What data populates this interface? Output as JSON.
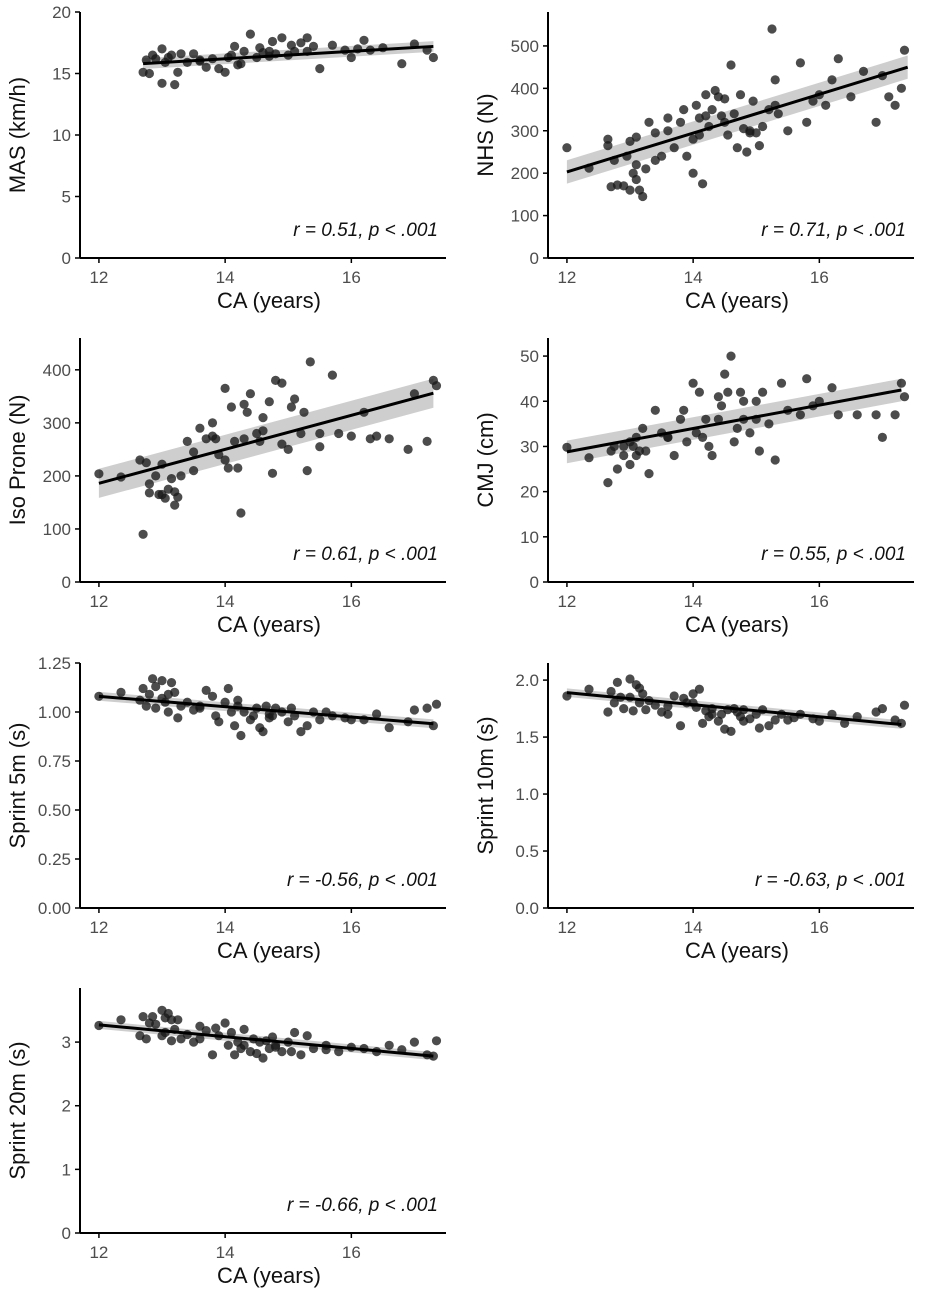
{
  "chart_data": [
    {
      "type": "scatter",
      "xlabel": "CA (years)",
      "ylabel": "MAS (km/h)",
      "xlim": [
        11.7,
        17.5
      ],
      "xticks": [
        12,
        14,
        16
      ],
      "ylim": [
        0,
        20
      ],
      "yticks": [
        0,
        5,
        10,
        15,
        20
      ],
      "annotation": "r = 0.51, p < .001",
      "fit": {
        "x0": 12.7,
        "y0": 15.8,
        "x1": 17.3,
        "y1": 17.2,
        "ci": 0.35
      },
      "x": [
        12.7,
        12.75,
        12.8,
        12.9,
        13.0,
        13.0,
        13.05,
        13.1,
        13.15,
        13.2,
        13.25,
        13.3,
        13.4,
        13.5,
        13.6,
        13.7,
        13.8,
        13.9,
        14.0,
        14.05,
        14.1,
        14.15,
        14.2,
        14.3,
        14.4,
        14.5,
        14.55,
        14.6,
        14.7,
        14.75,
        14.8,
        14.9,
        15.0,
        15.05,
        15.1,
        15.2,
        15.3,
        15.3,
        15.5,
        15.7,
        15.9,
        16.0,
        16.2,
        16.3,
        16.5,
        16.8,
        17.0,
        17.2,
        17.3,
        12.85,
        13.6,
        14.7,
        15.4,
        16.1,
        14.25
      ],
      "y": [
        15.1,
        16.1,
        15.0,
        16.2,
        14.2,
        17.0,
        15.9,
        16.3,
        16.5,
        14.1,
        15.1,
        16.6,
        15.9,
        16.6,
        16.0,
        15.5,
        16.2,
        15.4,
        15.1,
        16.3,
        16.5,
        17.2,
        15.7,
        16.8,
        18.2,
        16.3,
        17.1,
        16.7,
        16.4,
        17.6,
        16.6,
        17.9,
        16.5,
        17.3,
        16.8,
        17.5,
        17.9,
        16.8,
        15.4,
        17.3,
        16.9,
        16.3,
        17.7,
        16.9,
        17.1,
        15.8,
        17.4,
        16.9,
        16.3,
        16.5,
        16.1,
        16.8,
        17.2,
        17.0,
        15.8
      ]
    },
    {
      "type": "scatter",
      "xlabel": "CA (years)",
      "ylabel": "NHS (N)",
      "xlim": [
        11.7,
        17.5
      ],
      "xticks": [
        12,
        14,
        16
      ],
      "ylim": [
        0,
        580
      ],
      "yticks": [
        0,
        100,
        200,
        300,
        400,
        500
      ],
      "annotation": "r = 0.71, p < .001",
      "fit": {
        "x0": 12.0,
        "y0": 203,
        "x1": 17.4,
        "y1": 450,
        "ci": 22
      },
      "x": [
        12.0,
        12.35,
        12.65,
        12.7,
        12.75,
        12.8,
        12.9,
        12.95,
        13.0,
        13.0,
        13.05,
        13.1,
        13.1,
        13.15,
        13.2,
        13.25,
        13.3,
        13.4,
        13.5,
        13.6,
        13.7,
        13.8,
        13.85,
        13.9,
        14.0,
        14.05,
        14.1,
        14.1,
        14.15,
        14.2,
        14.25,
        14.3,
        14.35,
        14.4,
        14.45,
        14.5,
        14.55,
        14.6,
        14.65,
        14.7,
        14.75,
        14.8,
        14.85,
        14.9,
        14.95,
        15.0,
        15.05,
        15.1,
        15.2,
        15.25,
        15.3,
        15.35,
        15.5,
        15.7,
        15.8,
        15.9,
        16.1,
        16.2,
        16.3,
        16.5,
        16.7,
        16.9,
        17.0,
        17.1,
        17.2,
        17.3,
        17.35,
        12.65,
        13.4,
        14.2,
        14.5,
        14.9,
        15.3,
        16.0,
        13.6,
        14.0,
        13.1
      ],
      "y": [
        260,
        212,
        280,
        168,
        230,
        172,
        170,
        240,
        160,
        275,
        200,
        185,
        220,
        160,
        145,
        210,
        320,
        230,
        240,
        300,
        260,
        320,
        350,
        240,
        200,
        360,
        330,
        290,
        175,
        385,
        310,
        350,
        395,
        380,
        335,
        320,
        290,
        455,
        340,
        260,
        385,
        305,
        250,
        300,
        370,
        295,
        265,
        310,
        350,
        540,
        420,
        340,
        300,
        460,
        320,
        370,
        360,
        420,
        470,
        380,
        440,
        320,
        430,
        380,
        360,
        400,
        490,
        265,
        295,
        335,
        375,
        295,
        360,
        385,
        330,
        280,
        285
      ]
    },
    {
      "type": "scatter",
      "xlabel": "CA (years)",
      "ylabel": "Iso Prone (N)",
      "xlim": [
        11.7,
        17.5
      ],
      "xticks": [
        12,
        14,
        16
      ],
      "ylim": [
        0,
        460
      ],
      "yticks": [
        0,
        100,
        200,
        300,
        400
      ],
      "annotation": "r = 0.61, p < .001",
      "fit": {
        "x0": 12.0,
        "y0": 186,
        "x1": 17.3,
        "y1": 356,
        "ci": 22
      },
      "x": [
        12.0,
        12.35,
        12.65,
        12.7,
        12.75,
        12.8,
        12.9,
        12.95,
        13.0,
        13.05,
        13.1,
        13.15,
        13.2,
        13.25,
        13.3,
        13.4,
        13.5,
        13.6,
        13.7,
        13.8,
        13.85,
        13.9,
        14.0,
        14.0,
        14.05,
        14.1,
        14.15,
        14.2,
        14.25,
        14.3,
        14.35,
        14.4,
        14.5,
        14.55,
        14.6,
        14.7,
        14.75,
        14.8,
        14.9,
        15.0,
        15.05,
        15.1,
        15.2,
        15.25,
        15.3,
        15.35,
        15.5,
        15.7,
        15.8,
        16.0,
        16.2,
        16.3,
        16.6,
        16.9,
        17.0,
        17.2,
        17.3,
        17.35,
        13.0,
        13.2,
        13.8,
        14.3,
        14.9,
        15.5,
        16.4,
        13.5,
        14.6,
        12.8
      ],
      "y": [
        204,
        198,
        230,
        90,
        225,
        168,
        200,
        165,
        222,
        158,
        175,
        195,
        145,
        160,
        200,
        265,
        210,
        290,
        270,
        300,
        270,
        240,
        230,
        365,
        215,
        330,
        265,
        215,
        130,
        335,
        320,
        355,
        280,
        265,
        310,
        340,
        205,
        380,
        375,
        250,
        330,
        345,
        280,
        320,
        210,
        415,
        280,
        390,
        280,
        275,
        320,
        270,
        270,
        250,
        355,
        265,
        380,
        370,
        165,
        170,
        275,
        270,
        260,
        255,
        275,
        245,
        285,
        185
      ]
    },
    {
      "type": "scatter",
      "xlabel": "CA (years)",
      "ylabel": "CMJ (cm)",
      "xlim": [
        11.7,
        17.5
      ],
      "xticks": [
        12,
        14,
        16
      ],
      "ylim": [
        0,
        54
      ],
      "yticks": [
        0,
        10,
        20,
        30,
        40,
        50
      ],
      "annotation": "r = 0.55, p < .001",
      "fit": {
        "x0": 12.0,
        "y0": 28.8,
        "x1": 17.3,
        "y1": 42.5,
        "ci": 2.0
      },
      "x": [
        12.0,
        12.35,
        12.65,
        12.7,
        12.75,
        12.8,
        12.9,
        13.0,
        13.0,
        13.05,
        13.1,
        13.15,
        13.2,
        13.25,
        13.3,
        13.4,
        13.5,
        13.6,
        13.7,
        13.8,
        13.85,
        13.9,
        14.0,
        14.05,
        14.1,
        14.15,
        14.2,
        14.25,
        14.3,
        14.4,
        14.45,
        14.5,
        14.55,
        14.6,
        14.65,
        14.7,
        14.75,
        14.8,
        14.9,
        15.0,
        15.05,
        15.1,
        15.2,
        15.3,
        15.4,
        15.5,
        15.7,
        15.8,
        16.0,
        16.2,
        16.3,
        16.6,
        16.9,
        17.0,
        17.2,
        17.3,
        17.35,
        13.1,
        13.6,
        14.4,
        15.0,
        15.9,
        14.8,
        12.9
      ],
      "y": [
        29.8,
        27.5,
        22,
        29,
        30,
        25,
        28,
        26,
        31,
        30,
        32,
        29,
        34,
        29,
        24,
        38,
        33,
        32,
        28,
        36,
        38,
        31,
        44,
        33,
        42,
        32,
        36,
        30,
        28,
        36,
        39,
        46,
        42,
        50,
        31,
        34,
        42,
        40,
        33,
        36,
        29,
        42,
        35,
        27,
        44,
        38,
        37,
        45,
        40,
        43,
        37,
        37,
        37,
        32,
        37,
        44,
        41,
        28,
        32,
        41,
        40,
        39,
        36,
        30
      ]
    },
    {
      "type": "scatter",
      "xlabel": "CA (years)",
      "ylabel": "Sprint 5m (s)",
      "xlim": [
        11.7,
        17.5
      ],
      "xticks": [
        12,
        14,
        16
      ],
      "ylim": [
        0,
        1.25
      ],
      "yticks": [
        0.0,
        0.25,
        0.5,
        0.75,
        1.0,
        1.25
      ],
      "ytick_labels": [
        "0.00",
        "0.25",
        "0.50",
        "0.75",
        "1.00",
        "1.25"
      ],
      "annotation": "r = -0.56, p < .001",
      "fit": {
        "x0": 12.0,
        "y0": 1.08,
        "x1": 17.3,
        "y1": 0.94,
        "ci": 0.018
      },
      "x": [
        12.0,
        12.35,
        12.65,
        12.7,
        12.75,
        12.8,
        12.85,
        12.9,
        13.0,
        13.0,
        13.05,
        13.1,
        13.15,
        13.2,
        13.25,
        13.3,
        13.4,
        13.5,
        13.6,
        13.7,
        13.8,
        13.85,
        13.9,
        14.0,
        14.05,
        14.1,
        14.15,
        14.2,
        14.25,
        14.3,
        14.4,
        14.45,
        14.5,
        14.55,
        14.6,
        14.65,
        14.7,
        14.75,
        14.8,
        14.9,
        15.0,
        15.05,
        15.1,
        15.2,
        15.3,
        15.4,
        15.5,
        15.7,
        15.9,
        16.0,
        16.2,
        16.4,
        16.6,
        16.9,
        17.0,
        17.2,
        17.3,
        17.35,
        13.1,
        13.6,
        14.2,
        14.7,
        15.6,
        12.9
      ],
      "y": [
        1.08,
        1.1,
        1.06,
        1.12,
        1.03,
        1.09,
        1.17,
        1.02,
        1.07,
        1.16,
        1.05,
        1.0,
        1.15,
        1.1,
        0.97,
        1.03,
        1.05,
        1.01,
        1.02,
        1.11,
        1.08,
        0.98,
        0.95,
        1.05,
        1.12,
        1.0,
        0.93,
        1.03,
        0.88,
        1.0,
        0.96,
        0.98,
        1.02,
        0.92,
        0.9,
        1.03,
        0.97,
        0.98,
        1.02,
        1.0,
        0.95,
        1.02,
        0.98,
        0.9,
        0.93,
        1.0,
        0.96,
        0.98,
        0.97,
        0.96,
        0.96,
        0.99,
        0.92,
        0.95,
        1.01,
        1.02,
        0.93,
        1.04,
        1.09,
        1.03,
        1.06,
        0.99,
        1.0,
        1.13
      ]
    },
    {
      "type": "scatter",
      "xlabel": "CA (years)",
      "ylabel": "Sprint 10m (s)",
      "xlim": [
        11.7,
        17.5
      ],
      "xticks": [
        12,
        14,
        16
      ],
      "ylim": [
        0,
        2.15
      ],
      "yticks": [
        0.0,
        0.5,
        1.0,
        1.5,
        2.0
      ],
      "ytick_labels": [
        "0.0",
        "0.5",
        "1.0",
        "1.5",
        "2.0"
      ],
      "annotation": "r = -0.63, p < .001",
      "fit": {
        "x0": 12.0,
        "y0": 1.89,
        "x1": 17.3,
        "y1": 1.61,
        "ci": 0.03
      },
      "x": [
        12.0,
        12.35,
        12.65,
        12.7,
        12.75,
        12.8,
        12.9,
        13.0,
        13.0,
        13.05,
        13.1,
        13.15,
        13.2,
        13.25,
        13.3,
        13.4,
        13.5,
        13.6,
        13.7,
        13.8,
        13.85,
        13.9,
        14.0,
        14.05,
        14.1,
        14.15,
        14.2,
        14.25,
        14.3,
        14.4,
        14.45,
        14.5,
        14.55,
        14.6,
        14.65,
        14.7,
        14.75,
        14.8,
        14.9,
        15.0,
        15.05,
        15.1,
        15.2,
        15.3,
        15.4,
        15.5,
        15.7,
        15.9,
        16.0,
        16.2,
        16.4,
        16.6,
        16.9,
        17.0,
        17.2,
        17.3,
        17.35,
        12.85,
        13.15,
        13.6,
        14.3,
        14.8,
        15.6,
        14.0
      ],
      "y": [
        1.86,
        1.92,
        1.72,
        1.9,
        1.8,
        1.98,
        1.75,
        2.01,
        1.85,
        1.73,
        1.96,
        1.8,
        1.88,
        1.74,
        1.82,
        1.78,
        1.72,
        1.7,
        1.86,
        1.6,
        1.84,
        1.8,
        1.88,
        1.76,
        1.92,
        1.62,
        1.73,
        1.68,
        1.7,
        1.64,
        1.7,
        1.57,
        1.74,
        1.55,
        1.75,
        1.72,
        1.68,
        1.74,
        1.66,
        1.7,
        1.58,
        1.74,
        1.6,
        1.65,
        1.7,
        1.65,
        1.7,
        1.66,
        1.64,
        1.7,
        1.62,
        1.68,
        1.72,
        1.75,
        1.65,
        1.62,
        1.78,
        1.85,
        1.93,
        1.77,
        1.75,
        1.64,
        1.67,
        1.8
      ]
    },
    {
      "type": "scatter",
      "xlabel": "CA (years)",
      "ylabel": "Sprint 20m (s)",
      "xlim": [
        11.7,
        17.5
      ],
      "xticks": [
        12,
        14,
        16
      ],
      "ylim": [
        0,
        3.85
      ],
      "yticks": [
        0,
        1,
        2,
        3
      ],
      "annotation": "r = -0.66, p < .001",
      "fit": {
        "x0": 12.0,
        "y0": 3.27,
        "x1": 17.3,
        "y1": 2.78,
        "ci": 0.05
      },
      "x": [
        12.0,
        12.35,
        12.65,
        12.7,
        12.75,
        12.8,
        12.9,
        13.0,
        13.0,
        13.05,
        13.1,
        13.15,
        13.2,
        13.25,
        13.3,
        13.4,
        13.5,
        13.6,
        13.7,
        13.8,
        13.85,
        13.9,
        14.0,
        14.05,
        14.1,
        14.15,
        14.2,
        14.25,
        14.3,
        14.4,
        14.45,
        14.5,
        14.55,
        14.6,
        14.65,
        14.7,
        14.75,
        14.8,
        14.9,
        15.0,
        15.05,
        15.1,
        15.2,
        15.3,
        15.4,
        15.6,
        15.8,
        16.0,
        16.2,
        16.4,
        16.6,
        16.8,
        17.0,
        17.2,
        17.3,
        17.35,
        12.85,
        13.15,
        13.6,
        14.3,
        14.8,
        15.6,
        13.05
      ],
      "y": [
        3.26,
        3.35,
        3.1,
        3.4,
        3.05,
        3.3,
        3.28,
        3.5,
        3.1,
        3.38,
        3.45,
        3.02,
        3.2,
        3.35,
        3.05,
        3.12,
        3.0,
        3.25,
        3.18,
        2.8,
        3.22,
        3.1,
        3.3,
        2.95,
        3.15,
        2.8,
        3.0,
        2.9,
        2.95,
        2.85,
        3.05,
        2.82,
        3.0,
        2.75,
        3.02,
        2.9,
        3.08,
        2.92,
        2.85,
        3.0,
        2.85,
        3.15,
        2.8,
        3.1,
        2.9,
        2.95,
        2.85,
        2.92,
        2.9,
        2.85,
        2.95,
        2.88,
        3.0,
        2.8,
        2.78,
        3.02,
        3.4,
        3.35,
        3.05,
        3.2,
        2.95,
        2.88,
        3.15
      ]
    }
  ]
}
